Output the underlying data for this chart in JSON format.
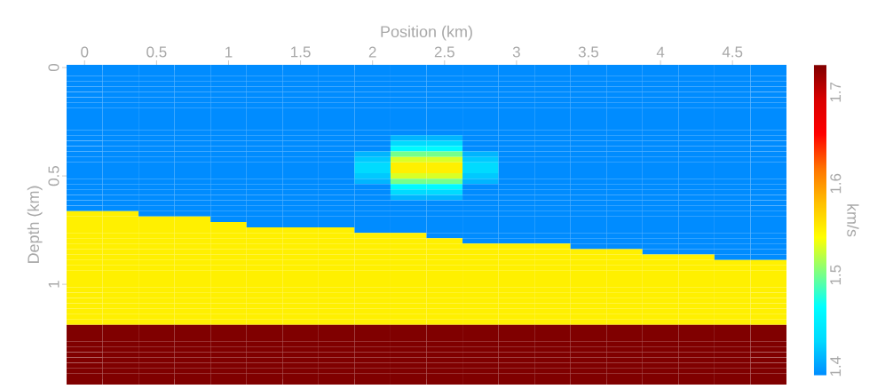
{
  "chart_data": {
    "type": "heatmap",
    "xlabel": "Position (km)",
    "ylabel": "Depth (km)",
    "clabel": "km/s",
    "clim": [
      1.39,
      1.73
    ],
    "cticks": [
      1.4,
      1.5,
      1.6,
      1.7
    ],
    "categories": [
      "0",
      null,
      "0.5",
      null,
      "1",
      null,
      "1.5",
      null,
      "2",
      null,
      "2.5",
      null,
      "3",
      null,
      "3.5",
      null,
      "4",
      null,
      "4.5",
      null
    ],
    "y_categories": [
      "0",
      null,
      null,
      null,
      null,
      null,
      null,
      null,
      null,
      null,
      null,
      null,
      null,
      null,
      null,
      null,
      null,
      null,
      null,
      null,
      "0.5",
      null,
      null,
      null,
      null,
      null,
      null,
      null,
      null,
      null,
      null,
      null,
      null,
      null,
      null,
      null,
      null,
      null,
      null,
      null,
      "1",
      null,
      null,
      null,
      null,
      null,
      null,
      null,
      null,
      null,
      null,
      null,
      null,
      null,
      null,
      null,
      null,
      null,
      null
    ],
    "cells": [
      [
        1.39,
        1.39,
        1.39,
        1.39,
        1.39,
        1.39,
        1.39,
        1.39,
        1.39,
        1.39,
        1.39,
        1.39,
        1.39,
        1.39,
        1.39,
        1.39,
        1.39,
        1.39,
        1.39,
        1.39
      ],
      [
        1.39,
        1.39,
        1.39,
        1.39,
        1.39,
        1.39,
        1.39,
        1.39,
        1.39,
        1.39,
        1.39,
        1.39,
        1.39,
        1.39,
        1.39,
        1.39,
        1.39,
        1.39,
        1.39,
        1.39
      ],
      [
        1.39,
        1.39,
        1.39,
        1.39,
        1.39,
        1.39,
        1.39,
        1.39,
        1.39,
        1.39,
        1.39,
        1.39,
        1.39,
        1.39,
        1.39,
        1.39,
        1.39,
        1.39,
        1.39,
        1.39
      ],
      [
        1.39,
        1.39,
        1.39,
        1.39,
        1.39,
        1.39,
        1.39,
        1.39,
        1.39,
        1.39,
        1.39,
        1.39,
        1.39,
        1.39,
        1.39,
        1.39,
        1.39,
        1.39,
        1.39,
        1.39
      ],
      [
        1.39,
        1.39,
        1.39,
        1.39,
        1.39,
        1.39,
        1.39,
        1.39,
        1.39,
        1.39,
        1.39,
        1.39,
        1.39,
        1.39,
        1.39,
        1.39,
        1.39,
        1.39,
        1.39,
        1.39
      ],
      [
        1.39,
        1.39,
        1.39,
        1.39,
        1.39,
        1.39,
        1.39,
        1.39,
        1.39,
        1.39,
        1.39,
        1.39,
        1.39,
        1.39,
        1.39,
        1.39,
        1.39,
        1.39,
        1.39,
        1.39
      ],
      [
        1.39,
        1.39,
        1.39,
        1.39,
        1.39,
        1.39,
        1.39,
        1.39,
        1.39,
        1.39,
        1.39,
        1.39,
        1.39,
        1.39,
        1.39,
        1.39,
        1.39,
        1.39,
        1.39,
        1.39
      ],
      [
        1.39,
        1.39,
        1.39,
        1.39,
        1.39,
        1.39,
        1.39,
        1.39,
        1.39,
        1.39,
        1.39,
        1.39,
        1.39,
        1.39,
        1.39,
        1.39,
        1.39,
        1.39,
        1.39,
        1.39
      ],
      [
        1.39,
        1.39,
        1.39,
        1.39,
        1.39,
        1.39,
        1.39,
        1.39,
        1.39,
        1.39,
        1.39,
        1.39,
        1.39,
        1.39,
        1.39,
        1.39,
        1.39,
        1.39,
        1.39,
        1.39
      ],
      [
        1.39,
        1.39,
        1.39,
        1.39,
        1.39,
        1.39,
        1.39,
        1.39,
        1.39,
        1.39,
        1.39,
        1.39,
        1.39,
        1.39,
        1.39,
        1.39,
        1.39,
        1.39,
        1.39,
        1.39
      ],
      [
        1.39,
        1.39,
        1.39,
        1.39,
        1.39,
        1.39,
        1.39,
        1.39,
        1.39,
        1.39,
        1.39,
        1.39,
        1.39,
        1.39,
        1.39,
        1.39,
        1.39,
        1.39,
        1.39,
        1.39
      ],
      [
        1.39,
        1.39,
        1.39,
        1.39,
        1.39,
        1.39,
        1.39,
        1.39,
        1.39,
        1.39,
        1.39,
        1.39,
        1.39,
        1.39,
        1.39,
        1.39,
        1.39,
        1.39,
        1.39,
        1.39
      ],
      [
        1.39,
        1.39,
        1.39,
        1.39,
        1.39,
        1.39,
        1.39,
        1.39,
        1.39,
        1.39,
        1.39,
        1.39,
        1.39,
        1.39,
        1.39,
        1.39,
        1.39,
        1.39,
        1.39,
        1.39
      ],
      [
        1.39,
        1.39,
        1.39,
        1.39,
        1.39,
        1.39,
        1.39,
        1.39,
        1.39,
        1.41,
        1.41,
        1.39,
        1.39,
        1.39,
        1.39,
        1.39,
        1.39,
        1.39,
        1.39,
        1.39
      ],
      [
        1.39,
        1.39,
        1.39,
        1.39,
        1.39,
        1.39,
        1.39,
        1.39,
        1.39,
        1.43,
        1.43,
        1.39,
        1.39,
        1.39,
        1.39,
        1.39,
        1.39,
        1.39,
        1.39,
        1.39
      ],
      [
        1.39,
        1.39,
        1.39,
        1.39,
        1.39,
        1.39,
        1.39,
        1.39,
        1.39,
        1.46,
        1.46,
        1.39,
        1.39,
        1.39,
        1.39,
        1.39,
        1.39,
        1.39,
        1.39,
        1.39
      ],
      [
        1.39,
        1.39,
        1.39,
        1.39,
        1.39,
        1.39,
        1.39,
        1.39,
        1.41,
        1.5,
        1.5,
        1.41,
        1.39,
        1.39,
        1.39,
        1.39,
        1.39,
        1.39,
        1.39,
        1.39
      ],
      [
        1.39,
        1.39,
        1.39,
        1.39,
        1.39,
        1.39,
        1.39,
        1.39,
        1.42,
        1.53,
        1.53,
        1.42,
        1.39,
        1.39,
        1.39,
        1.39,
        1.39,
        1.39,
        1.39,
        1.39
      ],
      [
        1.39,
        1.39,
        1.39,
        1.39,
        1.39,
        1.39,
        1.39,
        1.39,
        1.43,
        1.55,
        1.55,
        1.43,
        1.39,
        1.39,
        1.39,
        1.39,
        1.39,
        1.39,
        1.39,
        1.39
      ],
      [
        1.39,
        1.39,
        1.39,
        1.39,
        1.39,
        1.39,
        1.39,
        1.39,
        1.43,
        1.55,
        1.55,
        1.43,
        1.39,
        1.39,
        1.39,
        1.39,
        1.39,
        1.39,
        1.39,
        1.39
      ],
      [
        1.39,
        1.39,
        1.39,
        1.39,
        1.39,
        1.39,
        1.39,
        1.39,
        1.42,
        1.53,
        1.53,
        1.42,
        1.39,
        1.39,
        1.39,
        1.39,
        1.39,
        1.39,
        1.39,
        1.39
      ],
      [
        1.39,
        1.39,
        1.39,
        1.39,
        1.39,
        1.39,
        1.39,
        1.39,
        1.41,
        1.5,
        1.5,
        1.41,
        1.39,
        1.39,
        1.39,
        1.39,
        1.39,
        1.39,
        1.39,
        1.39
      ],
      [
        1.39,
        1.39,
        1.39,
        1.39,
        1.39,
        1.39,
        1.39,
        1.39,
        1.39,
        1.46,
        1.46,
        1.39,
        1.39,
        1.39,
        1.39,
        1.39,
        1.39,
        1.39,
        1.39,
        1.39
      ],
      [
        1.39,
        1.39,
        1.39,
        1.39,
        1.39,
        1.39,
        1.39,
        1.39,
        1.39,
        1.43,
        1.43,
        1.39,
        1.39,
        1.39,
        1.39,
        1.39,
        1.39,
        1.39,
        1.39,
        1.39
      ],
      [
        1.39,
        1.39,
        1.39,
        1.39,
        1.39,
        1.39,
        1.39,
        1.39,
        1.39,
        1.41,
        1.41,
        1.39,
        1.39,
        1.39,
        1.39,
        1.39,
        1.39,
        1.39,
        1.39,
        1.39
      ],
      [
        1.39,
        1.39,
        1.39,
        1.39,
        1.39,
        1.39,
        1.39,
        1.39,
        1.39,
        1.39,
        1.39,
        1.39,
        1.39,
        1.39,
        1.39,
        1.39,
        1.39,
        1.39,
        1.39,
        1.39
      ],
      [
        1.39,
        1.39,
        1.39,
        1.39,
        1.39,
        1.39,
        1.39,
        1.39,
        1.39,
        1.39,
        1.39,
        1.39,
        1.39,
        1.39,
        1.39,
        1.39,
        1.39,
        1.39,
        1.39,
        1.39
      ],
      [
        1.55,
        1.55,
        1.39,
        1.39,
        1.39,
        1.39,
        1.39,
        1.39,
        1.39,
        1.39,
        1.39,
        1.39,
        1.39,
        1.39,
        1.39,
        1.39,
        1.39,
        1.39,
        1.39,
        1.39
      ],
      [
        1.55,
        1.55,
        1.55,
        1.55,
        1.39,
        1.39,
        1.39,
        1.39,
        1.39,
        1.39,
        1.39,
        1.39,
        1.39,
        1.39,
        1.39,
        1.39,
        1.39,
        1.39,
        1.39,
        1.39
      ],
      [
        1.55,
        1.55,
        1.55,
        1.55,
        1.55,
        1.39,
        1.39,
        1.39,
        1.39,
        1.39,
        1.39,
        1.39,
        1.39,
        1.39,
        1.39,
        1.39,
        1.39,
        1.39,
        1.39,
        1.39
      ],
      [
        1.55,
        1.55,
        1.55,
        1.55,
        1.55,
        1.55,
        1.55,
        1.55,
        1.39,
        1.39,
        1.39,
        1.39,
        1.39,
        1.39,
        1.39,
        1.39,
        1.39,
        1.39,
        1.39,
        1.39
      ],
      [
        1.55,
        1.55,
        1.55,
        1.55,
        1.55,
        1.55,
        1.55,
        1.55,
        1.55,
        1.55,
        1.39,
        1.39,
        1.39,
        1.39,
        1.39,
        1.39,
        1.39,
        1.39,
        1.39,
        1.39
      ],
      [
        1.55,
        1.55,
        1.55,
        1.55,
        1.55,
        1.55,
        1.55,
        1.55,
        1.55,
        1.55,
        1.55,
        1.39,
        1.39,
        1.39,
        1.39,
        1.39,
        1.39,
        1.39,
        1.39,
        1.39
      ],
      [
        1.55,
        1.55,
        1.55,
        1.55,
        1.55,
        1.55,
        1.55,
        1.55,
        1.55,
        1.55,
        1.55,
        1.55,
        1.55,
        1.55,
        1.39,
        1.39,
        1.39,
        1.39,
        1.39,
        1.39
      ],
      [
        1.55,
        1.55,
        1.55,
        1.55,
        1.55,
        1.55,
        1.55,
        1.55,
        1.55,
        1.55,
        1.55,
        1.55,
        1.55,
        1.55,
        1.55,
        1.55,
        1.39,
        1.39,
        1.39,
        1.39
      ],
      [
        1.55,
        1.55,
        1.55,
        1.55,
        1.55,
        1.55,
        1.55,
        1.55,
        1.55,
        1.55,
        1.55,
        1.55,
        1.55,
        1.55,
        1.55,
        1.55,
        1.55,
        1.55,
        1.39,
        1.39
      ],
      [
        1.55,
        1.55,
        1.55,
        1.55,
        1.55,
        1.55,
        1.55,
        1.55,
        1.55,
        1.55,
        1.55,
        1.55,
        1.55,
        1.55,
        1.55,
        1.55,
        1.55,
        1.55,
        1.55,
        1.55
      ],
      [
        1.55,
        1.55,
        1.55,
        1.55,
        1.55,
        1.55,
        1.55,
        1.55,
        1.55,
        1.55,
        1.55,
        1.55,
        1.55,
        1.55,
        1.55,
        1.55,
        1.55,
        1.55,
        1.55,
        1.55
      ],
      [
        1.55,
        1.55,
        1.55,
        1.55,
        1.55,
        1.55,
        1.55,
        1.55,
        1.55,
        1.55,
        1.55,
        1.55,
        1.55,
        1.55,
        1.55,
        1.55,
        1.55,
        1.55,
        1.55,
        1.55
      ],
      [
        1.55,
        1.55,
        1.55,
        1.55,
        1.55,
        1.55,
        1.55,
        1.55,
        1.55,
        1.55,
        1.55,
        1.55,
        1.55,
        1.55,
        1.55,
        1.55,
        1.55,
        1.55,
        1.55,
        1.55
      ],
      [
        1.55,
        1.55,
        1.55,
        1.55,
        1.55,
        1.55,
        1.55,
        1.55,
        1.55,
        1.55,
        1.55,
        1.55,
        1.55,
        1.55,
        1.55,
        1.55,
        1.55,
        1.55,
        1.55,
        1.55
      ],
      [
        1.55,
        1.55,
        1.55,
        1.55,
        1.55,
        1.55,
        1.55,
        1.55,
        1.55,
        1.55,
        1.55,
        1.55,
        1.55,
        1.55,
        1.55,
        1.55,
        1.55,
        1.55,
        1.55,
        1.55
      ],
      [
        1.55,
        1.55,
        1.55,
        1.55,
        1.55,
        1.55,
        1.55,
        1.55,
        1.55,
        1.55,
        1.55,
        1.55,
        1.55,
        1.55,
        1.55,
        1.55,
        1.55,
        1.55,
        1.55,
        1.55
      ],
      [
        1.55,
        1.55,
        1.55,
        1.55,
        1.55,
        1.55,
        1.55,
        1.55,
        1.55,
        1.55,
        1.55,
        1.55,
        1.55,
        1.55,
        1.55,
        1.55,
        1.55,
        1.55,
        1.55,
        1.55
      ],
      [
        1.55,
        1.55,
        1.55,
        1.55,
        1.55,
        1.55,
        1.55,
        1.55,
        1.55,
        1.55,
        1.55,
        1.55,
        1.55,
        1.55,
        1.55,
        1.55,
        1.55,
        1.55,
        1.55,
        1.55
      ],
      [
        1.55,
        1.55,
        1.55,
        1.55,
        1.55,
        1.55,
        1.55,
        1.55,
        1.55,
        1.55,
        1.55,
        1.55,
        1.55,
        1.55,
        1.55,
        1.55,
        1.55,
        1.55,
        1.55,
        1.55
      ],
      [
        1.55,
        1.55,
        1.55,
        1.55,
        1.55,
        1.55,
        1.55,
        1.55,
        1.55,
        1.55,
        1.55,
        1.55,
        1.55,
        1.55,
        1.55,
        1.55,
        1.55,
        1.55,
        1.55,
        1.55
      ],
      [
        1.55,
        1.55,
        1.55,
        1.55,
        1.55,
        1.55,
        1.55,
        1.55,
        1.55,
        1.55,
        1.55,
        1.55,
        1.55,
        1.55,
        1.55,
        1.55,
        1.55,
        1.55,
        1.55,
        1.55
      ],
      [
        1.73,
        1.73,
        1.73,
        1.73,
        1.73,
        1.73,
        1.73,
        1.73,
        1.73,
        1.73,
        1.73,
        1.73,
        1.73,
        1.73,
        1.73,
        1.73,
        1.73,
        1.73,
        1.73,
        1.73
      ],
      [
        1.73,
        1.73,
        1.73,
        1.73,
        1.73,
        1.73,
        1.73,
        1.73,
        1.73,
        1.73,
        1.73,
        1.73,
        1.73,
        1.73,
        1.73,
        1.73,
        1.73,
        1.73,
        1.73,
        1.73
      ],
      [
        1.73,
        1.73,
        1.73,
        1.73,
        1.73,
        1.73,
        1.73,
        1.73,
        1.73,
        1.73,
        1.73,
        1.73,
        1.73,
        1.73,
        1.73,
        1.73,
        1.73,
        1.73,
        1.73,
        1.73
      ],
      [
        1.73,
        1.73,
        1.73,
        1.73,
        1.73,
        1.73,
        1.73,
        1.73,
        1.73,
        1.73,
        1.73,
        1.73,
        1.73,
        1.73,
        1.73,
        1.73,
        1.73,
        1.73,
        1.73,
        1.73
      ],
      [
        1.73,
        1.73,
        1.73,
        1.73,
        1.73,
        1.73,
        1.73,
        1.73,
        1.73,
        1.73,
        1.73,
        1.73,
        1.73,
        1.73,
        1.73,
        1.73,
        1.73,
        1.73,
        1.73,
        1.73
      ],
      [
        1.73,
        1.73,
        1.73,
        1.73,
        1.73,
        1.73,
        1.73,
        1.73,
        1.73,
        1.73,
        1.73,
        1.73,
        1.73,
        1.73,
        1.73,
        1.73,
        1.73,
        1.73,
        1.73,
        1.73
      ],
      [
        1.73,
        1.73,
        1.73,
        1.73,
        1.73,
        1.73,
        1.73,
        1.73,
        1.73,
        1.73,
        1.73,
        1.73,
        1.73,
        1.73,
        1.73,
        1.73,
        1.73,
        1.73,
        1.73,
        1.73
      ],
      [
        1.73,
        1.73,
        1.73,
        1.73,
        1.73,
        1.73,
        1.73,
        1.73,
        1.73,
        1.73,
        1.73,
        1.73,
        1.73,
        1.73,
        1.73,
        1.73,
        1.73,
        1.73,
        1.73,
        1.73
      ],
      [
        1.73,
        1.73,
        1.73,
        1.73,
        1.73,
        1.73,
        1.73,
        1.73,
        1.73,
        1.73,
        1.73,
        1.73,
        1.73,
        1.73,
        1.73,
        1.73,
        1.73,
        1.73,
        1.73,
        1.73
      ],
      [
        1.73,
        1.73,
        1.73,
        1.73,
        1.73,
        1.73,
        1.73,
        1.73,
        1.73,
        1.73,
        1.73,
        1.73,
        1.73,
        1.73,
        1.73,
        1.73,
        1.73,
        1.73,
        1.73,
        1.73
      ],
      [
        1.73,
        1.73,
        1.73,
        1.73,
        1.73,
        1.73,
        1.73,
        1.73,
        1.73,
        1.73,
        1.73,
        1.73,
        1.73,
        1.73,
        1.73,
        1.73,
        1.73,
        1.73,
        1.73,
        1.73
      ]
    ]
  }
}
